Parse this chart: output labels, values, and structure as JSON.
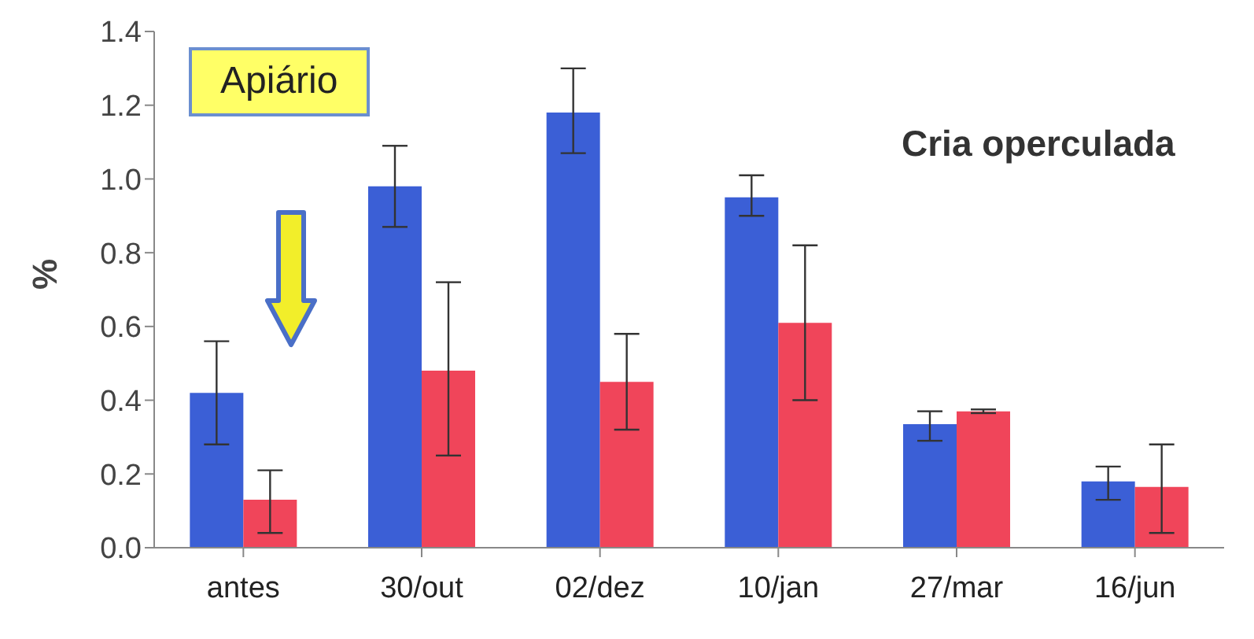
{
  "chart_data": {
    "type": "bar",
    "ylabel": "%",
    "categories": [
      "antes",
      "30/out",
      "02/dez",
      "10/jan",
      "27/mar",
      "16/jun"
    ],
    "series": [
      {
        "color": "#3b5fd6",
        "values": [
          0.42,
          0.98,
          1.18,
          0.95,
          0.335,
          0.18
        ],
        "errors": [
          [
            0.28,
            0.56
          ],
          [
            0.87,
            1.09
          ],
          [
            1.07,
            1.3
          ],
          [
            0.9,
            1.01
          ],
          [
            0.29,
            0.37
          ],
          [
            0.13,
            0.22
          ]
        ]
      },
      {
        "color": "#f0455a",
        "values": [
          0.13,
          0.48,
          0.45,
          0.61,
          0.37,
          0.165
        ],
        "errors": [
          [
            0.04,
            0.21
          ],
          [
            0.25,
            0.72
          ],
          [
            0.32,
            0.58
          ],
          [
            0.4,
            0.82
          ],
          [
            0.365,
            0.375
          ],
          [
            0.04,
            0.28
          ]
        ]
      }
    ],
    "ylim": [
      0,
      1.4
    ],
    "yticks": [
      {
        "value": 0,
        "label": "0.0"
      },
      {
        "value": 0.2,
        "label": "0.2"
      },
      {
        "value": 0.4,
        "label": "0.4"
      },
      {
        "value": 0.6,
        "label": "0.6"
      },
      {
        "value": 0.8,
        "label": "0.8"
      },
      {
        "value": 1,
        "label": "1.0"
      },
      {
        "value": 1.2,
        "label": "1.2"
      },
      {
        "value": 1.4,
        "label": "1.4"
      }
    ],
    "grid": false,
    "legend": false,
    "annotations": [
      "Apiário",
      "Cria operculada"
    ]
  }
}
